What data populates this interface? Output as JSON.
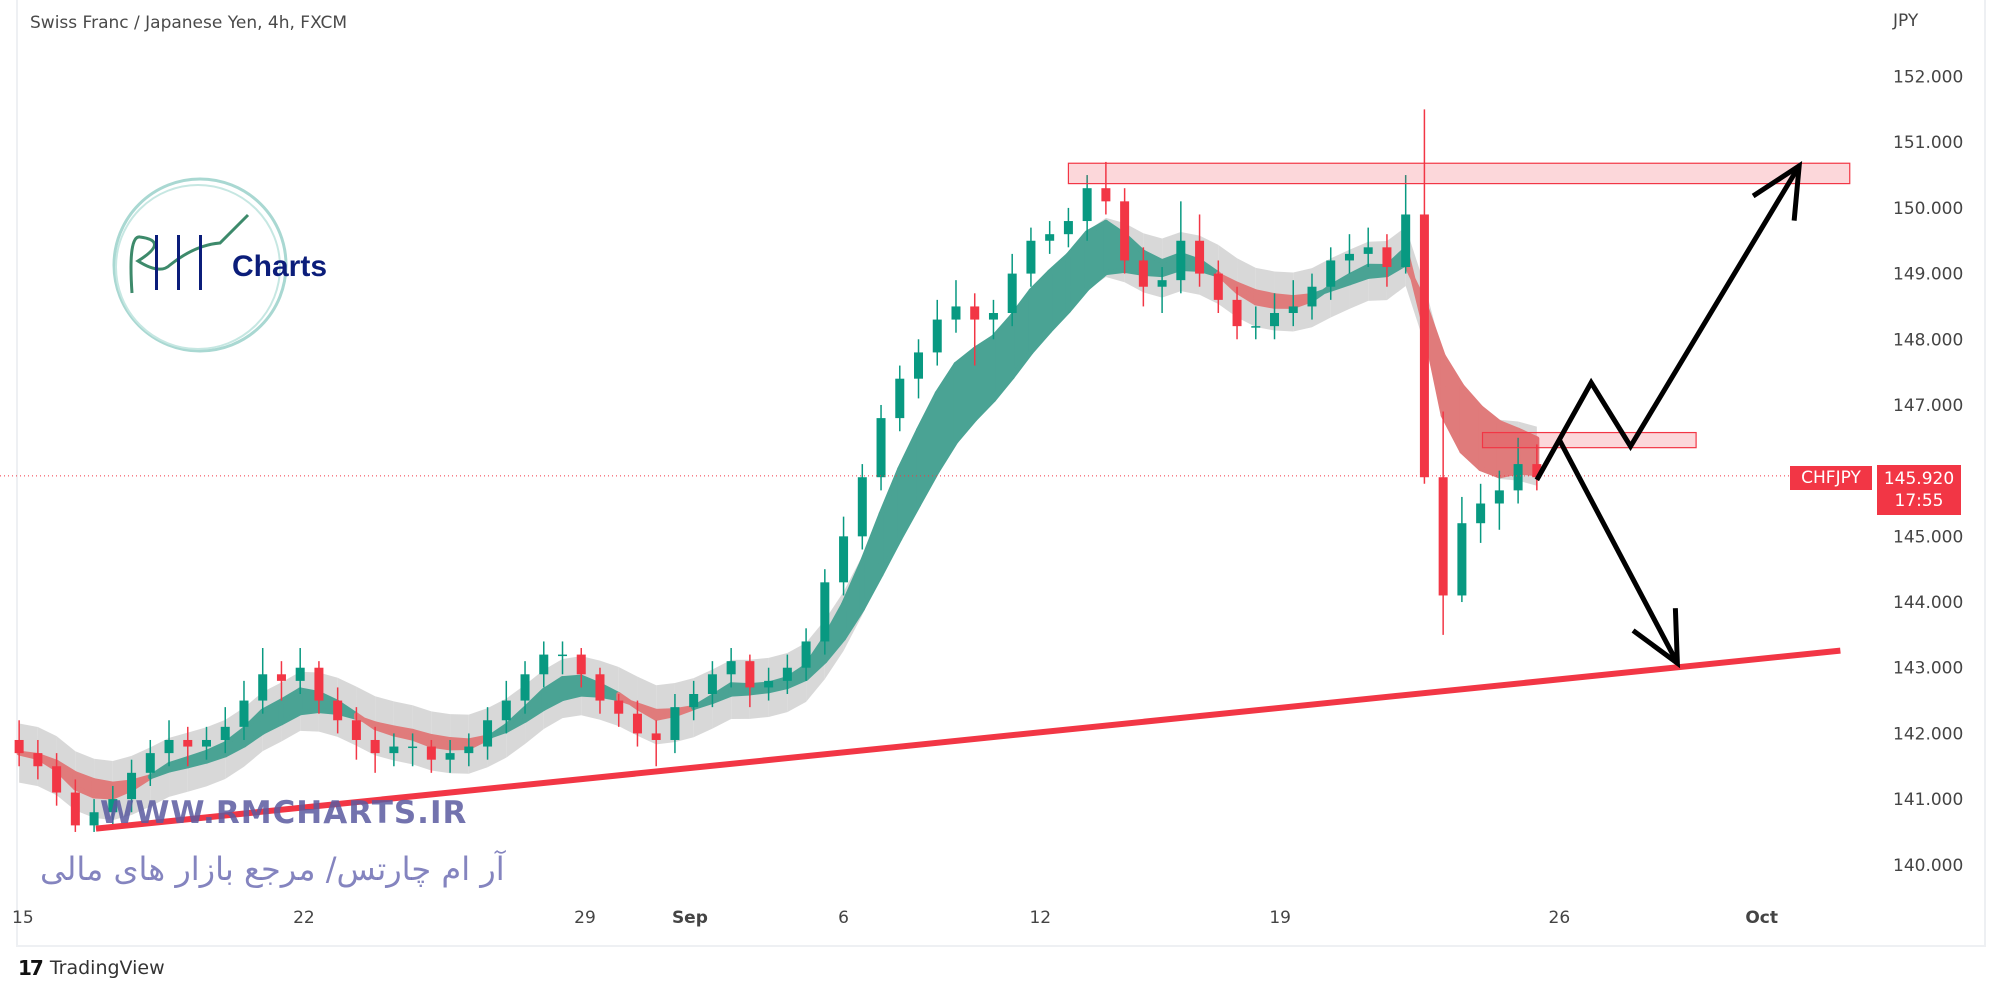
{
  "header": {
    "title": "Swiss Franc / Japanese Yen, 4h, FXCM"
  },
  "footer": {
    "brand": "TradingView",
    "brand_logo": "17"
  },
  "watermark": {
    "url": "WWW.RMCHARTS.IR",
    "persian": "آر ام چارتس/ مرجع بازار های مالی",
    "logo_text": "Charts",
    "logo_letters": "RM"
  },
  "last_price": {
    "symbol": "CHFJPY",
    "price": "145.920",
    "countdown": "17:55"
  },
  "colors": {
    "up": "#089981",
    "down": "#f23645",
    "ribbon_up": "#4aa394",
    "ribbon_down": "#e07b7b",
    "envelope": "#d4d4d4",
    "drawing": "#f23645",
    "arrows": "#000000"
  },
  "chart_data": {
    "type": "candlestick",
    "title": "Swiss Franc / Japanese Yen, 4h, FXCM",
    "ylabel": "JPY",
    "ylim": [
      139.5,
      152.5
    ],
    "y_ticks": [
      "152.000",
      "151.000",
      "150.000",
      "149.000",
      "148.000",
      "147.000",
      "145.000",
      "144.000",
      "143.000",
      "142.000",
      "141.000",
      "140.000"
    ],
    "x_ticks": [
      {
        "label": "15",
        "index": 0.2
      },
      {
        "label": "22",
        "index": 15.2
      },
      {
        "label": "29",
        "index": 30.2
      },
      {
        "label": "Sep",
        "index": 35.8,
        "bold": true
      },
      {
        "label": "6",
        "index": 44.0
      },
      {
        "label": "12",
        "index": 54.5
      },
      {
        "label": "19",
        "index": 67.3
      },
      {
        "label": "26",
        "index": 82.2
      },
      {
        "label": "Oct",
        "index": 93.0,
        "bold": true
      }
    ],
    "candles_ohlc": [
      [
        141.9,
        142.2,
        141.5,
        141.7
      ],
      [
        141.7,
        141.9,
        141.3,
        141.5
      ],
      [
        141.5,
        141.7,
        140.9,
        141.1
      ],
      [
        141.1,
        141.3,
        140.5,
        140.6
      ],
      [
        140.6,
        141.0,
        140.5,
        140.8
      ],
      [
        140.8,
        141.2,
        140.6,
        141.0
      ],
      [
        141.0,
        141.6,
        140.8,
        141.4
      ],
      [
        141.4,
        141.9,
        141.2,
        141.7
      ],
      [
        141.7,
        142.2,
        141.5,
        141.9
      ],
      [
        141.9,
        142.1,
        141.5,
        141.8
      ],
      [
        141.8,
        142.1,
        141.6,
        141.9
      ],
      [
        141.9,
        142.4,
        141.7,
        142.1
      ],
      [
        142.1,
        142.8,
        141.9,
        142.5
      ],
      [
        142.5,
        143.3,
        142.3,
        142.9
      ],
      [
        142.9,
        143.1,
        142.5,
        142.8
      ],
      [
        142.8,
        143.3,
        142.6,
        143.0
      ],
      [
        143.0,
        143.1,
        142.3,
        142.5
      ],
      [
        142.5,
        142.7,
        142.0,
        142.2
      ],
      [
        142.2,
        142.4,
        141.6,
        141.9
      ],
      [
        141.9,
        142.1,
        141.4,
        141.7
      ],
      [
        141.7,
        142.0,
        141.5,
        141.8
      ],
      [
        141.8,
        142.0,
        141.5,
        141.8
      ],
      [
        141.8,
        141.9,
        141.4,
        141.6
      ],
      [
        141.6,
        141.9,
        141.4,
        141.7
      ],
      [
        141.7,
        142.0,
        141.5,
        141.8
      ],
      [
        141.8,
        142.4,
        141.6,
        142.2
      ],
      [
        142.2,
        142.8,
        142.0,
        142.5
      ],
      [
        142.5,
        143.1,
        142.3,
        142.9
      ],
      [
        142.9,
        143.4,
        142.7,
        143.2
      ],
      [
        143.2,
        143.4,
        142.9,
        143.2
      ],
      [
        143.2,
        143.3,
        142.7,
        142.9
      ],
      [
        142.9,
        143.0,
        142.3,
        142.5
      ],
      [
        142.5,
        142.6,
        142.1,
        142.3
      ],
      [
        142.3,
        142.5,
        141.8,
        142.0
      ],
      [
        142.0,
        142.2,
        141.5,
        141.9
      ],
      [
        141.9,
        142.6,
        141.7,
        142.4
      ],
      [
        142.4,
        142.8,
        142.2,
        142.6
      ],
      [
        142.6,
        143.1,
        142.4,
        142.9
      ],
      [
        142.9,
        143.3,
        142.7,
        143.1
      ],
      [
        143.1,
        143.2,
        142.4,
        142.7
      ],
      [
        142.7,
        143.0,
        142.5,
        142.8
      ],
      [
        142.8,
        143.2,
        142.6,
        143.0
      ],
      [
        143.0,
        143.6,
        142.8,
        143.4
      ],
      [
        143.4,
        144.5,
        143.2,
        144.3
      ],
      [
        144.3,
        145.3,
        144.1,
        145.0
      ],
      [
        145.0,
        146.1,
        144.8,
        145.9
      ],
      [
        145.9,
        147.0,
        145.7,
        146.8
      ],
      [
        146.8,
        147.6,
        146.6,
        147.4
      ],
      [
        147.4,
        148.0,
        147.1,
        147.8
      ],
      [
        147.8,
        148.6,
        147.6,
        148.3
      ],
      [
        148.3,
        148.9,
        148.1,
        148.5
      ],
      [
        148.5,
        148.7,
        147.6,
        148.3
      ],
      [
        148.3,
        148.6,
        148.0,
        148.4
      ],
      [
        148.4,
        149.3,
        148.2,
        149.0
      ],
      [
        149.0,
        149.7,
        148.8,
        149.5
      ],
      [
        149.5,
        149.8,
        149.3,
        149.6
      ],
      [
        149.6,
        150.0,
        149.4,
        149.8
      ],
      [
        149.8,
        150.5,
        149.5,
        150.3
      ],
      [
        150.3,
        150.7,
        149.9,
        150.1
      ],
      [
        150.1,
        150.3,
        149.0,
        149.2
      ],
      [
        149.2,
        149.4,
        148.5,
        148.8
      ],
      [
        148.8,
        149.1,
        148.4,
        148.9
      ],
      [
        148.9,
        150.1,
        148.7,
        149.5
      ],
      [
        149.5,
        149.9,
        148.8,
        149.0
      ],
      [
        149.0,
        149.2,
        148.4,
        148.6
      ],
      [
        148.6,
        148.8,
        148.0,
        148.2
      ],
      [
        148.2,
        148.5,
        148.0,
        148.2
      ],
      [
        148.2,
        148.7,
        148.0,
        148.4
      ],
      [
        148.4,
        148.9,
        148.2,
        148.5
      ],
      [
        148.5,
        149.0,
        148.3,
        148.8
      ],
      [
        148.8,
        149.4,
        148.6,
        149.2
      ],
      [
        149.2,
        149.6,
        149.0,
        149.3
      ],
      [
        149.3,
        149.7,
        149.1,
        149.4
      ],
      [
        149.4,
        149.6,
        148.8,
        149.1
      ],
      [
        149.1,
        150.5,
        149.0,
        149.9
      ],
      [
        149.9,
        151.5,
        145.8,
        145.9
      ],
      [
        145.9,
        146.9,
        143.5,
        144.1
      ],
      [
        144.1,
        145.6,
        144.0,
        145.2
      ],
      [
        145.2,
        145.8,
        144.9,
        145.5
      ],
      [
        145.5,
        146.0,
        145.1,
        145.7
      ],
      [
        145.7,
        146.5,
        145.5,
        146.1
      ],
      [
        146.1,
        146.4,
        145.7,
        145.9
      ]
    ],
    "last_price": 145.92,
    "drawings": {
      "support_line": {
        "from": [
          4.1,
          140.55
        ],
        "to": [
          97.2,
          143.26
        ]
      },
      "resistance_zone": {
        "x": [
          56.0,
          97.7
        ],
        "y": [
          150.37,
          150.68
        ]
      },
      "small_zone": {
        "x": [
          78.1,
          89.5
        ],
        "y": [
          146.35,
          146.58
        ]
      },
      "bullish_path": [
        [
          81.0,
          145.86
        ],
        [
          83.9,
          147.34
        ],
        [
          86.0,
          146.37
        ],
        [
          95.0,
          150.64
        ]
      ],
      "bearish_path": [
        [
          82.2,
          146.47
        ],
        [
          88.5,
          143.07
        ]
      ]
    },
    "grid": false,
    "legend": "none"
  }
}
